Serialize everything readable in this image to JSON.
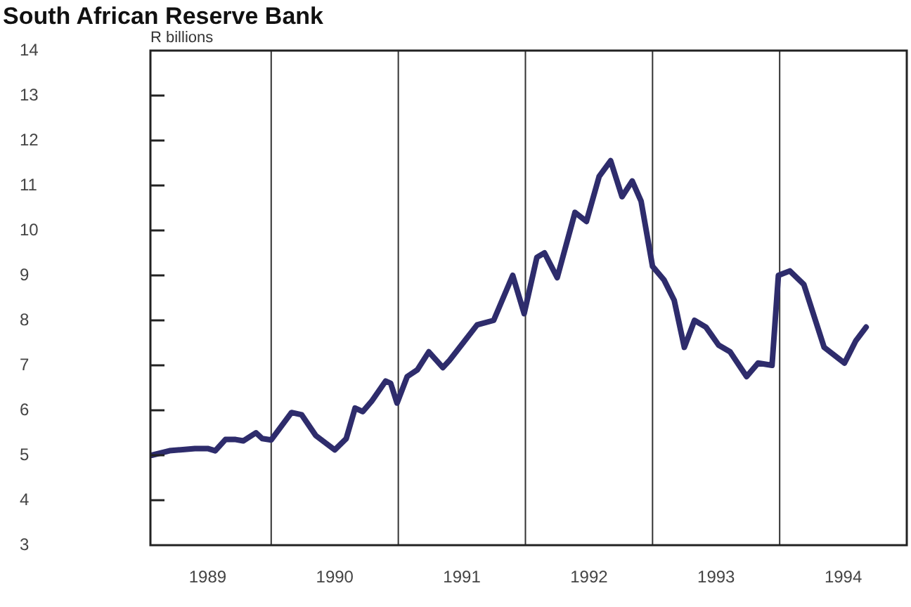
{
  "chart_data": {
    "type": "line",
    "title": "South African Reserve Bank",
    "ylabel": "R billions",
    "x": [
      1989.06,
      1989.2,
      1989.4,
      1989.5,
      1989.56,
      1989.64,
      1989.72,
      1989.78,
      1989.88,
      1989.93,
      1990.0,
      1990.16,
      1990.24,
      1990.35,
      1990.5,
      1990.59,
      1990.66,
      1990.72,
      1990.79,
      1990.9,
      1990.94,
      1990.99,
      1991.07,
      1991.15,
      1991.24,
      1991.35,
      1991.4,
      1991.51,
      1991.62,
      1991.75,
      1991.9,
      1991.99,
      1992.09,
      1992.15,
      1992.25,
      1992.39,
      1992.48,
      1992.58,
      1992.67,
      1992.76,
      1992.84,
      1992.91,
      1993.0,
      1993.09,
      1993.17,
      1993.25,
      1993.33,
      1993.42,
      1993.52,
      1993.61,
      1993.74,
      1993.83,
      1993.94,
      1993.99,
      1994.08,
      1994.19,
      1994.35,
      1994.51,
      1994.6,
      1994.68
    ],
    "series": [
      {
        "color": "#2e2c6c",
        "values": [
          5.0,
          5.1,
          5.15,
          5.15,
          5.1,
          5.35,
          5.35,
          5.32,
          5.5,
          5.37,
          5.34,
          5.95,
          5.9,
          5.44,
          5.12,
          5.37,
          6.05,
          5.97,
          6.2,
          6.65,
          6.6,
          6.16,
          6.75,
          6.9,
          7.3,
          6.95,
          7.1,
          7.5,
          7.9,
          8.0,
          9.0,
          8.15,
          9.4,
          9.5,
          8.95,
          10.4,
          10.2,
          11.2,
          11.55,
          10.75,
          11.1,
          10.65,
          9.2,
          8.9,
          8.45,
          7.4,
          8.0,
          7.85,
          7.45,
          7.3,
          6.75,
          7.05,
          7.0,
          9.0,
          9.1,
          8.8,
          7.4,
          7.05,
          7.55,
          7.85
        ]
      }
    ],
    "xlim": [
      1989.05,
      1995
    ],
    "xticks": [
      {
        "value": 1989.5,
        "label": "1989"
      },
      {
        "value": 1990.5,
        "label": "1990"
      },
      {
        "value": 1991.5,
        "label": "1991"
      },
      {
        "value": 1992.5,
        "label": "1992"
      },
      {
        "value": 1993.5,
        "label": "1993"
      },
      {
        "value": 1994.5,
        "label": "1994"
      }
    ],
    "ylim": [
      3,
      14
    ],
    "yticks": [
      3,
      4,
      5,
      6,
      7,
      8,
      9,
      10,
      11,
      12,
      13,
      14
    ],
    "ref_lines": [
      {
        "axis": "x",
        "value": 1990
      },
      {
        "axis": "x",
        "value": 1991
      },
      {
        "axis": "x",
        "value": 1992
      },
      {
        "axis": "x",
        "value": 1993
      },
      {
        "axis": "x",
        "value": 1994
      }
    ]
  }
}
